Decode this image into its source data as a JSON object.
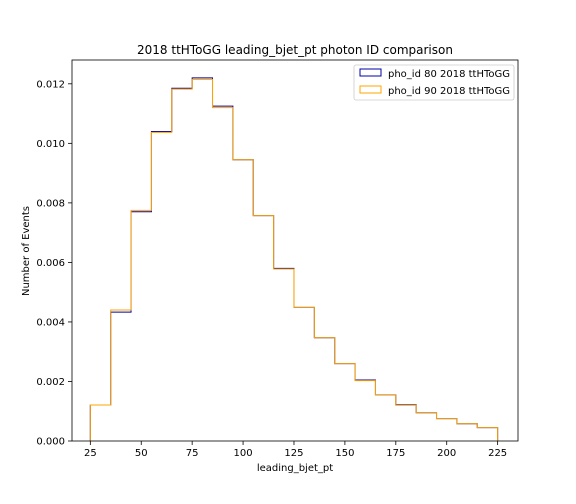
{
  "chart_data": {
    "type": "histogram",
    "title": "2018 ttHToGG leading_bjet_pt photon ID comparison",
    "xlabel": "leading_bjet_pt",
    "ylabel": "Number of Events",
    "xlim": [
      16,
      235
    ],
    "ylim": [
      0,
      0.0128
    ],
    "xticks": [
      25,
      50,
      75,
      100,
      125,
      150,
      175,
      200,
      225
    ],
    "yticks": [
      0.0,
      0.002,
      0.004,
      0.006,
      0.008,
      0.01,
      0.012
    ],
    "ytick_labels": [
      "0.000",
      "0.002",
      "0.004",
      "0.006",
      "0.008",
      "0.010",
      "0.012"
    ],
    "bin_edges": [
      25,
      35,
      45,
      55,
      65,
      75,
      85,
      95,
      105,
      115,
      125,
      135,
      145,
      155,
      165,
      175,
      185,
      195,
      205,
      215,
      225
    ],
    "legend_position": "upper right",
    "grid": false,
    "series": [
      {
        "name": "pho_id 80 2018 ttHToGG",
        "color": "#0000aa",
        "values": [
          0.00121,
          0.00433,
          0.0077,
          0.0104,
          0.01185,
          0.0122,
          0.01125,
          0.00945,
          0.00757,
          0.0058,
          0.00449,
          0.00347,
          0.0026,
          0.00205,
          0.00155,
          0.00122,
          0.00095,
          0.00075,
          0.00058,
          0.00045
        ]
      },
      {
        "name": "pho_id 90 2018 ttHToGG",
        "color": "#ffa500",
        "values": [
          0.00121,
          0.0044,
          0.00775,
          0.01037,
          0.01182,
          0.01215,
          0.0112,
          0.00945,
          0.00757,
          0.00578,
          0.00449,
          0.00347,
          0.0026,
          0.00203,
          0.00155,
          0.0012,
          0.00095,
          0.00075,
          0.00058,
          0.00045
        ]
      }
    ]
  }
}
